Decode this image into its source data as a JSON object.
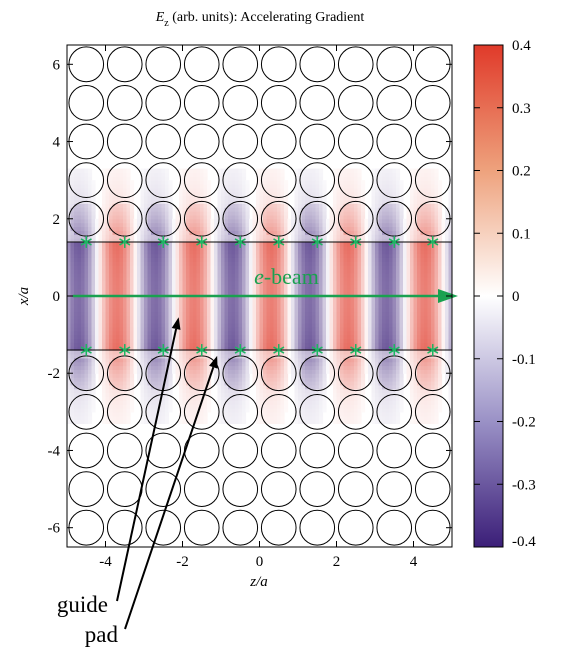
{
  "chart_data": {
    "type": "heatmap",
    "title_var": "E",
    "title_sub": "z",
    "title_rest": " (arb. units): Accelerating Gradient",
    "xlabel": "z/a",
    "ylabel": "x/a",
    "xlim": [
      -5,
      5
    ],
    "ylim": [
      -6.5,
      6.5
    ],
    "xticks": [
      -4,
      -2,
      0,
      2,
      4
    ],
    "yticks": [
      -6,
      -4,
      -2,
      0,
      2,
      4,
      6
    ],
    "colorbar": {
      "min": -0.4,
      "max": 0.4,
      "ticks": [
        "0.4",
        "0.3",
        "0.2",
        "0.1",
        "0",
        "-0.1",
        "-0.2",
        "-0.3",
        "-0.4"
      ],
      "colors": {
        "min": "#3b1e78",
        "mid": "#ffffff",
        "max": "#e03a2a"
      }
    },
    "structure": {
      "rod_columns_z": [
        -4.5,
        -3.5,
        -2.5,
        -1.5,
        -0.5,
        0.5,
        1.5,
        2.5,
        3.5,
        4.5
      ],
      "rod_rows_x": [
        -6,
        -5,
        -4,
        -3,
        -2,
        2,
        3,
        4,
        5,
        6
      ],
      "rod_radius": 0.45,
      "guide_edges_x": [
        -1.4,
        1.4
      ],
      "pad_marker_z": [
        -4.5,
        -3.5,
        -2.5,
        -1.5,
        -0.5,
        0.5,
        1.5,
        2.5,
        3.5,
        4.5
      ],
      "pad_marker_color": "#1db562"
    },
    "beam": {
      "label_italic": "e",
      "label_rest": "-beam",
      "x": 0,
      "z_start": -4.85,
      "z_end": 5.0,
      "color": "#1aa150"
    },
    "annotations": [
      {
        "text": "guide",
        "target_z": -2.1,
        "target_x": -0.55
      },
      {
        "text": "pad",
        "target_z": -1.1,
        "target_x": -1.55
      }
    ]
  }
}
